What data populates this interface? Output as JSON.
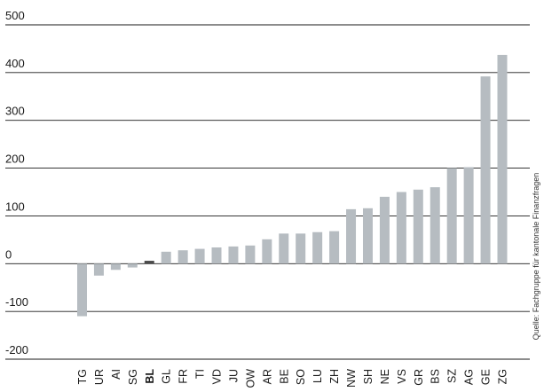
{
  "chart_data": {
    "type": "bar",
    "ylim": [
      -200,
      500
    ],
    "yticks": [
      500,
      400,
      300,
      200,
      100,
      0,
      -100,
      -200
    ],
    "ytick_labels": [
      "500",
      "400",
      "300",
      "200",
      "100",
      "0",
      "-100",
      "-200"
    ],
    "grid": true,
    "source": "Quelle: Fachgruppe für kantonale Finanzfragen",
    "categories": [
      "TG",
      "UR",
      "AI",
      "SG",
      "BL",
      "GL",
      "FR",
      "TI",
      "VD",
      "JU",
      "OW",
      "AR",
      "BE",
      "SO",
      "LU",
      "ZH",
      "NW",
      "SH",
      "NE",
      "VS",
      "GR",
      "BS",
      "SZ",
      "AG",
      "GE",
      "ZG"
    ],
    "values": [
      -110,
      -25,
      -13,
      -8,
      6,
      25,
      28,
      31,
      34,
      36,
      38,
      51,
      63,
      63,
      66,
      68,
      114,
      116,
      140,
      150,
      155,
      160,
      200,
      202,
      392,
      437
    ],
    "highlight": "BL",
    "colors": {
      "bar": "#b6bcc1",
      "highlight": "#4a4a4a",
      "grid": "#1a1a1a"
    }
  }
}
